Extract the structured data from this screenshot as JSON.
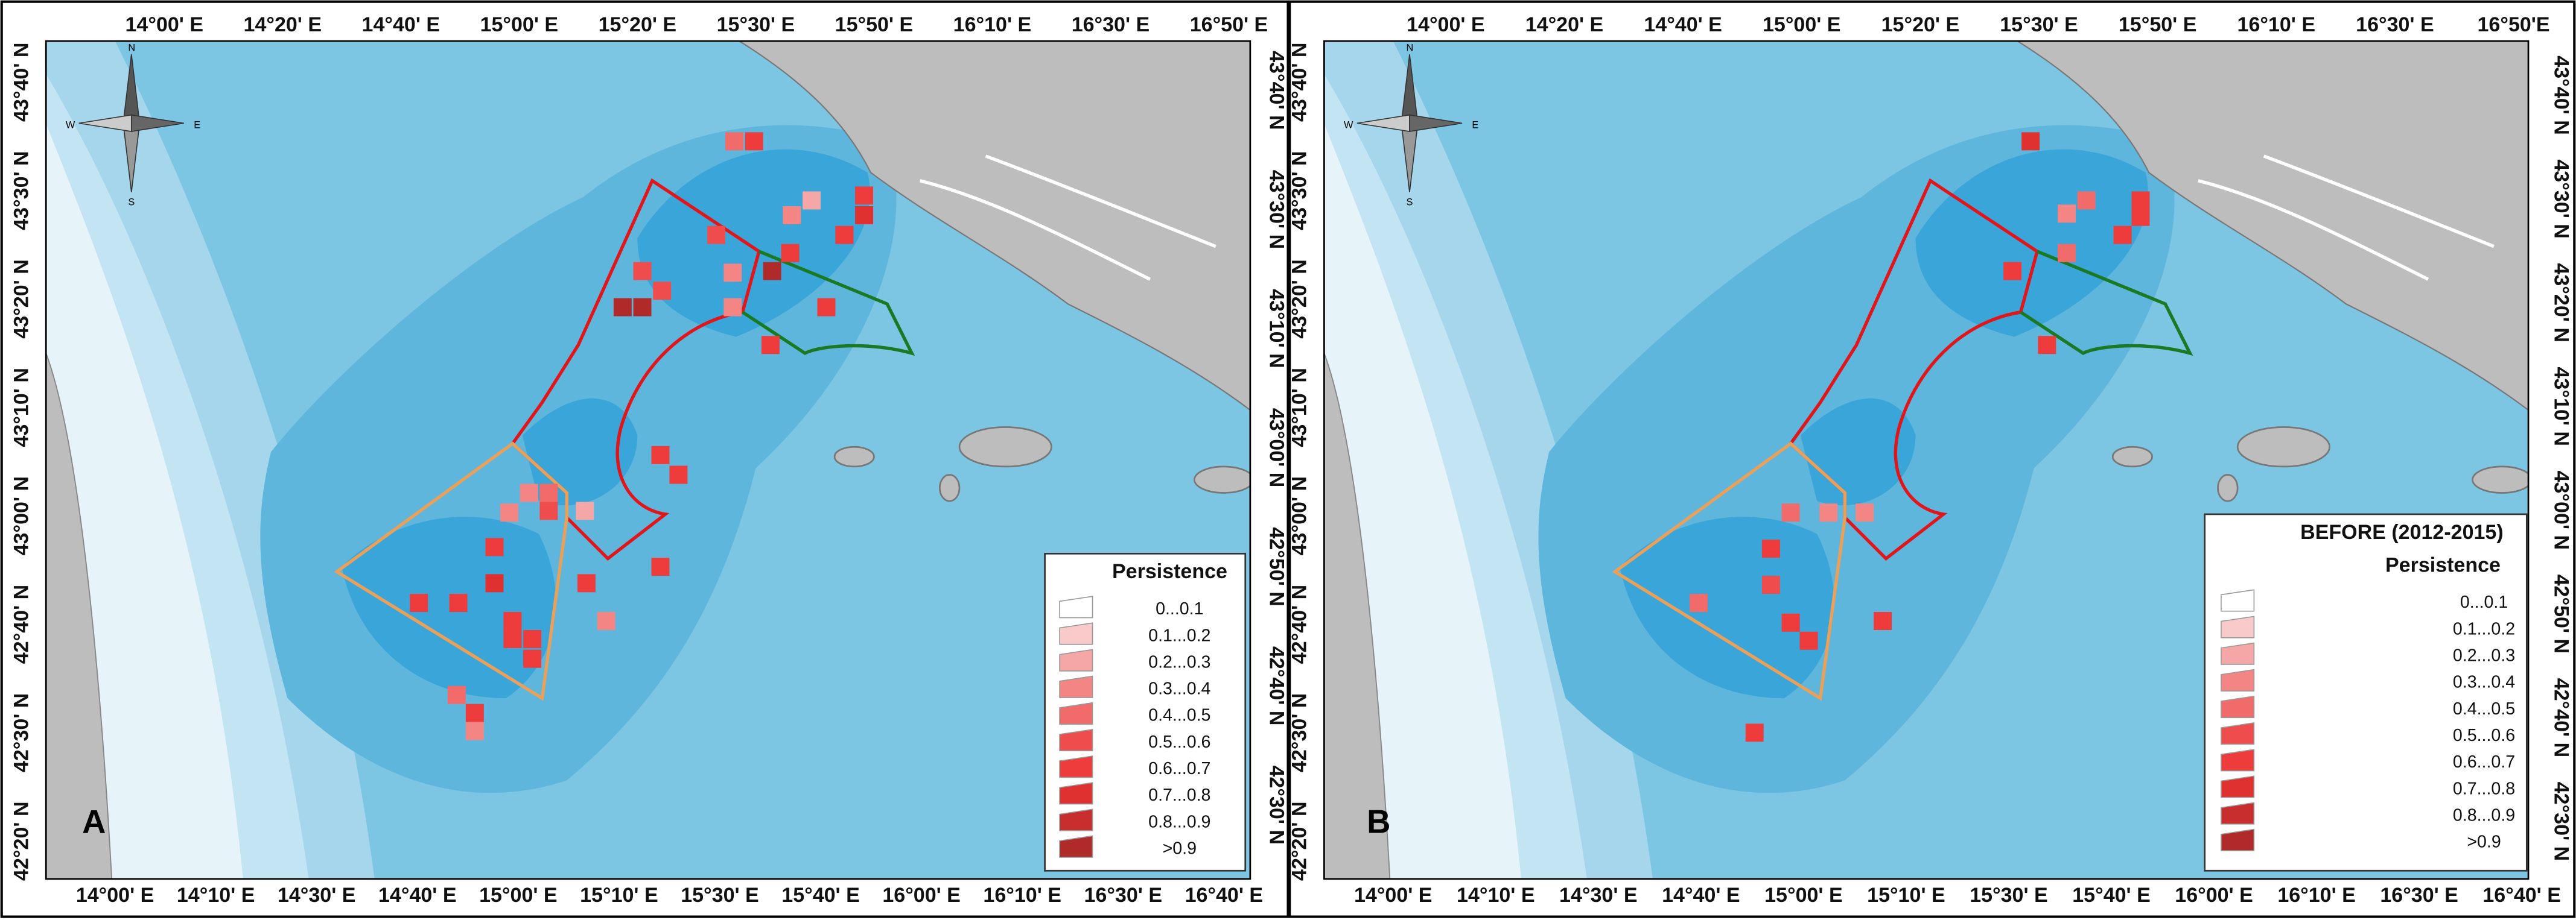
{
  "panels": [
    {
      "label": "A",
      "top_axis": [
        "14°00' E",
        "14°20' E",
        "14°40' E",
        "15°00' E",
        "15°20' E",
        "15°30' E",
        "15°50' E",
        "16°10' E",
        "16°30' E",
        "16°50' E"
      ],
      "bottom_axis": [
        "14°00' E",
        "14°10' E",
        "14°30' E",
        "14°40' E",
        "15°00' E",
        "15°10' E",
        "15°30' E",
        "15°40' E",
        "16°00' E",
        "16°10' E",
        "16°30' E",
        "16°40' E"
      ],
      "left_axis": [
        "43°40' N",
        "43°30' N",
        "43°20' N",
        "43°10' N",
        "43°00' N",
        "42°40' N",
        "42°30' N",
        "42°20' N"
      ],
      "right_axis": [
        "43°40' N",
        "43°30' N",
        "43°10' N",
        "43°00' N",
        "42°50' N",
        "42°40' N",
        "42°30' N"
      ],
      "legend": {
        "title": "Persistence",
        "items": [
          "0...0.1",
          "0.1...0.2",
          "0.2...0.3",
          "0.3...0.4",
          "0.4...0.5",
          "0.5...0.6",
          "0.6...0.7",
          "0.7...0.8",
          "0.8...0.9",
          ">0.9"
        ]
      }
    },
    {
      "label": "B",
      "top_axis": [
        "14°00' E",
        "14°20' E",
        "14°40' E",
        "15°00' E",
        "15°20' E",
        "15°30' E",
        "15°50' E",
        "16°10' E",
        "16°30' E",
        "16°50'E"
      ],
      "bottom_axis": [
        "14°00' E",
        "14°10' E",
        "14°30' E",
        "14°40' E",
        "15°00' E",
        "15°10' E",
        "15°30' E",
        "15°40' E",
        "16°00' E",
        "16°10' E",
        "16°30' E",
        "16°40' E"
      ],
      "left_axis": [
        "43°40' N",
        "43°30' N",
        "43°20' N",
        "43°10' N",
        "43°00' N",
        "42°40' N",
        "42°30' N",
        "42°20' N"
      ],
      "right_axis": [
        "43°40' N",
        "43°30' N",
        "43°20' N",
        "43°10' N",
        "43°00' N",
        "42°50' N",
        "42°40' N",
        "42°30' N"
      ],
      "legend": {
        "heading": "BEFORE (2012-2015)",
        "title": "Persistence",
        "items": [
          "0...0.1",
          "0.1...0.2",
          "0.2...0.3",
          "0.3...0.4",
          "0.4...0.5",
          "0.5...0.6",
          "0.6...0.7",
          "0.7...0.8",
          "0.8...0.9",
          ">0.9"
        ]
      }
    }
  ]
}
